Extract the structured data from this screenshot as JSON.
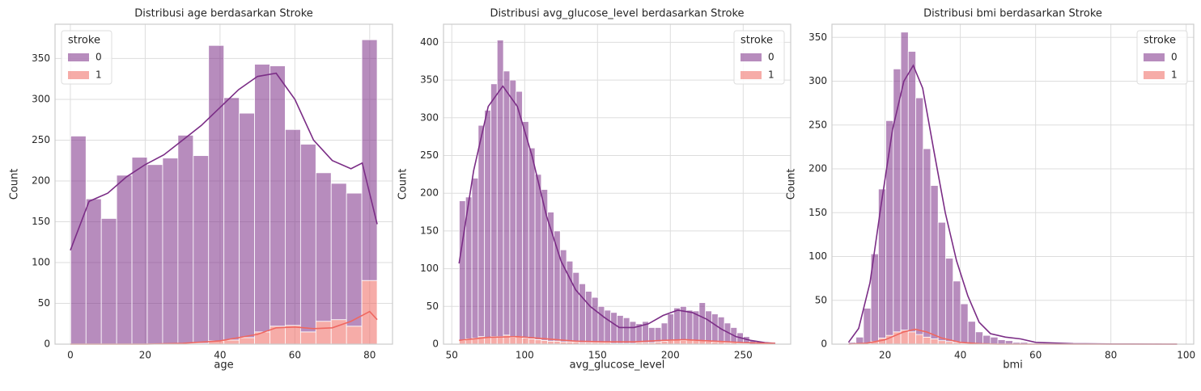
{
  "chart_data": [
    {
      "type": "histogram",
      "title": "Distribusi age berdasarkan Stroke",
      "xlabel": "age",
      "ylabel": "Count",
      "legend_title": "stroke",
      "legend_loc": "upper left",
      "grid": true,
      "stacked": true,
      "xlim": [
        -4.1,
        86.1
      ],
      "ylim": [
        0,
        392
      ],
      "xticks": [
        0,
        20,
        40,
        60,
        80
      ],
      "yticks": [
        0,
        50,
        100,
        150,
        200,
        250,
        300,
        350
      ],
      "bins": [
        0.08,
        4.18,
        8.27,
        12.37,
        16.46,
        20.56,
        24.66,
        28.75,
        32.85,
        36.94,
        41.04,
        45.14,
        49.23,
        53.33,
        57.42,
        61.52,
        65.62,
        69.71,
        73.81,
        77.9,
        82.0
      ],
      "series": [
        {
          "name": "0",
          "color": "#7b2d86",
          "values": [
            255,
            178,
            154,
            207,
            229,
            220,
            228,
            255,
            230,
            362,
            297,
            275,
            328,
            319,
            240,
            230,
            182,
            167,
            163,
            295
          ],
          "kde_x": [
            0,
            5,
            10,
            15,
            20,
            25,
            30,
            35,
            40,
            45,
            50,
            55,
            60,
            65,
            70,
            75,
            78,
            82
          ],
          "kde_y": [
            115,
            175,
            185,
            205,
            220,
            232,
            250,
            268,
            290,
            312,
            328,
            332,
            300,
            250,
            225,
            215,
            222,
            147
          ]
        },
        {
          "name": "1",
          "color": "#ef6760",
          "values": [
            0,
            0,
            0,
            0,
            0,
            0,
            0,
            1,
            1,
            4,
            5,
            8,
            15,
            22,
            23,
            15,
            28,
            30,
            22,
            78
          ],
          "kde_x": [
            0,
            20,
            30,
            40,
            50,
            55,
            60,
            65,
            70,
            75,
            80,
            82
          ],
          "kde_y": [
            0,
            0,
            1,
            4,
            12,
            20,
            21,
            19,
            20,
            28,
            40,
            30
          ]
        }
      ]
    },
    {
      "type": "histogram",
      "title": "Distribusi avg_glucose_level berdasarkan Stroke",
      "xlabel": "avg_glucose_level",
      "ylabel": "Count",
      "legend_title": "stroke",
      "legend_loc": "upper right",
      "grid": true,
      "stacked": true,
      "xlim": [
        44.3,
        282.6
      ],
      "ylim": [
        0,
        424
      ],
      "xticks": [
        50,
        100,
        150,
        200,
        250
      ],
      "yticks": [
        0,
        50,
        100,
        150,
        200,
        250,
        300,
        350,
        400
      ],
      "bins": [
        55.12,
        59.45,
        63.79,
        68.12,
        72.45,
        76.78,
        81.11,
        85.45,
        89.78,
        94.11,
        98.44,
        102.78,
        107.11,
        111.44,
        115.77,
        120.11,
        124.44,
        128.77,
        133.1,
        137.44,
        141.77,
        146.1,
        150.43,
        154.77,
        159.1,
        163.43,
        167.76,
        172.09,
        176.43,
        180.76,
        185.09,
        189.42,
        193.76,
        198.09,
        202.42,
        206.75,
        211.09,
        215.42,
        219.75,
        224.08,
        228.42,
        232.75,
        237.08,
        241.41,
        245.75,
        250.08,
        254.41,
        258.74,
        263.08,
        267.41,
        271.74
      ],
      "series": [
        {
          "name": "0",
          "color": "#7b2d86",
          "values": [
            185,
            188,
            212,
            280,
            301,
            335,
            393,
            350,
            341,
            325,
            287,
            253,
            219,
            200,
            171,
            146,
            122,
            107,
            92,
            78,
            68,
            60,
            48,
            43,
            41,
            37,
            34,
            29,
            25,
            28,
            20,
            19,
            24,
            35,
            42,
            45,
            39,
            39,
            50,
            40,
            37,
            33,
            26,
            20,
            14,
            9,
            5,
            3,
            1,
            1
          ],
          "kde_x": [
            55,
            65,
            75,
            85,
            95,
            105,
            115,
            125,
            135,
            145,
            155,
            165,
            175,
            185,
            195,
            205,
            215,
            225,
            235,
            245,
            255,
            265,
            272
          ],
          "kde_y": [
            107,
            230,
            315,
            342,
            315,
            250,
            170,
            110,
            72,
            50,
            35,
            22,
            22,
            27,
            38,
            45,
            42,
            33,
            20,
            10,
            5,
            2,
            1
          ]
        },
        {
          "name": "1",
          "color": "#ef6760",
          "values": [
            5,
            7,
            8,
            10,
            9,
            10,
            10,
            12,
            9,
            10,
            8,
            7,
            6,
            5,
            4,
            4,
            3,
            3,
            3,
            2,
            2,
            2,
            2,
            2,
            1,
            1,
            1,
            1,
            2,
            2,
            2,
            3,
            4,
            5,
            6,
            5,
            6,
            5,
            5,
            4,
            3,
            3,
            2,
            2,
            1,
            1,
            0,
            0,
            0,
            0
          ],
          "kde_x": [
            55,
            75,
            95,
            115,
            135,
            155,
            175,
            195,
            210,
            230,
            250,
            272
          ],
          "kde_y": [
            5,
            9,
            10,
            7,
            4,
            3,
            3,
            5,
            6,
            4,
            2,
            1
          ]
        }
      ]
    },
    {
      "type": "histogram",
      "title": "Distribusi bmi berdasarkan Stroke",
      "xlabel": "bmi",
      "ylabel": "Count",
      "legend_title": "stroke",
      "legend_loc": "upper right",
      "grid": true,
      "stacked": true,
      "xlim": [
        5.9,
        102
      ],
      "ylim": [
        0,
        365
      ],
      "xticks": [
        20,
        40,
        60,
        80,
        100
      ],
      "yticks": [
        0,
        50,
        100,
        150,
        200,
        250,
        300,
        350
      ],
      "bins": [
        10.3,
        12.28,
        14.27,
        16.25,
        18.24,
        20.22,
        22.2,
        24.19,
        26.17,
        28.16,
        30.14,
        32.12,
        34.11,
        36.09,
        38.08,
        40.06,
        42.04,
        44.03,
        46.01,
        48.0,
        49.98,
        51.96,
        53.95,
        55.93,
        57.92,
        59.9,
        61.88,
        63.87,
        65.85,
        67.84,
        69.82,
        71.8,
        73.79,
        75.77,
        77.76,
        79.74,
        81.72,
        83.71,
        85.69,
        87.68,
        89.66,
        91.64,
        93.63,
        95.61,
        97.6
      ],
      "series": [
        {
          "name": "0",
          "color": "#7b2d86",
          "values": [
            2,
            8,
            40,
            100,
            170,
            245,
            300,
            340,
            320,
            270,
            215,
            175,
            135,
            95,
            70,
            45,
            25,
            14,
            10,
            8,
            5,
            4,
            2,
            2,
            1,
            1,
            1,
            0,
            0,
            0,
            0,
            0,
            1,
            0,
            0,
            0,
            0,
            1,
            0,
            0,
            0,
            1,
            0,
            1
          ],
          "kde_x": [
            10.3,
            13,
            16,
            19,
            22,
            25,
            27.5,
            30,
            33,
            36,
            39,
            42,
            45,
            48,
            52,
            56,
            60,
            70,
            80,
            97.6
          ],
          "kde_y": [
            2,
            18,
            70,
            160,
            245,
            300,
            318,
            292,
            220,
            150,
            95,
            55,
            25,
            12,
            8,
            6,
            2,
            0.5,
            0.2,
            0
          ]
        },
        {
          "name": "1",
          "color": "#ef6760",
          "values": [
            0,
            0,
            1,
            3,
            7,
            10,
            14,
            16,
            14,
            11,
            8,
            6,
            4,
            3,
            2,
            1,
            1,
            0,
            0,
            0,
            0,
            0,
            0,
            0,
            0,
            0,
            0,
            0,
            0,
            0,
            0,
            0,
            0,
            0,
            0,
            0,
            0,
            0,
            0,
            0,
            0,
            0,
            0,
            0
          ],
          "kde_x": [
            10.3,
            15,
            20,
            25,
            28,
            31,
            35,
            40,
            45,
            50,
            97.6
          ],
          "kde_y": [
            0,
            1,
            5,
            14,
            17,
            14,
            7,
            2,
            0.5,
            0,
            0
          ]
        }
      ]
    }
  ]
}
